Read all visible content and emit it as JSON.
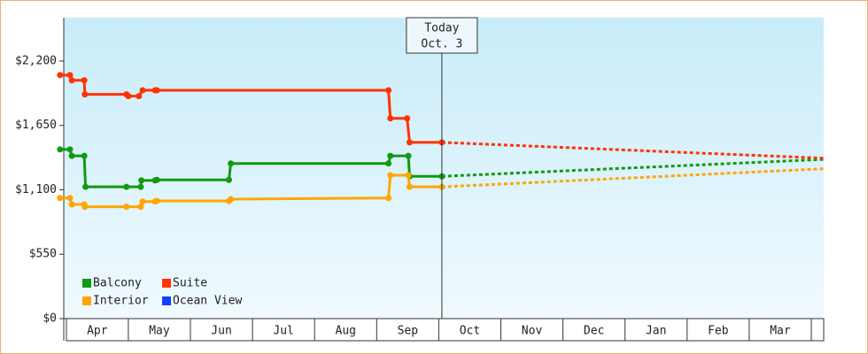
{
  "chart_data": {
    "type": "line",
    "ylim": [
      0,
      2570
    ],
    "yticks": [
      {
        "value": 0,
        "label": "$0"
      },
      {
        "value": 550,
        "label": "$550"
      },
      {
        "value": 1100,
        "label": "$1,100"
      },
      {
        "value": 1650,
        "label": "$1,650"
      },
      {
        "value": 2200,
        "label": "$2,200"
      }
    ],
    "xlim": [
      -0.04,
      12.2
    ],
    "xticks": [
      {
        "value": 0.5,
        "label": "Apr"
      },
      {
        "value": 1.5,
        "label": "May"
      },
      {
        "value": 2.5,
        "label": "Jun"
      },
      {
        "value": 3.5,
        "label": "Jul"
      },
      {
        "value": 4.5,
        "label": "Aug"
      },
      {
        "value": 5.5,
        "label": "Sep"
      },
      {
        "value": 6.5,
        "label": "Oct"
      },
      {
        "value": 7.5,
        "label": "Nov"
      },
      {
        "value": 8.5,
        "label": "Dec"
      },
      {
        "value": 9.5,
        "label": "Jan"
      },
      {
        "value": 10.5,
        "label": "Feb"
      },
      {
        "value": 11.5,
        "label": "Mar"
      }
    ],
    "annotation": {
      "x": 6.05,
      "lines": [
        "Today",
        "Oct. 3"
      ]
    },
    "series": [
      {
        "name": "Balcony",
        "color": "#119911",
        "x": [
          -0.1,
          0.06,
          0.09,
          0.29,
          0.31,
          0.97,
          1.2,
          1.21,
          1.43,
          1.46,
          2.62,
          2.65,
          5.19,
          5.22,
          5.51,
          5.53,
          6.05
        ],
        "values": [
          1445,
          1445,
          1390,
          1390,
          1125,
          1125,
          1125,
          1180,
          1180,
          1185,
          1185,
          1325,
          1325,
          1390,
          1390,
          1215,
          1215
        ],
        "forecast": {
          "x": [
            6.05,
            12.2
          ],
          "values": [
            1215,
            1360
          ]
        }
      },
      {
        "name": "Suite",
        "color": "#ff3300",
        "x": [
          -0.1,
          0.06,
          0.09,
          0.29,
          0.3,
          0.97,
          1.0,
          1.17,
          1.23,
          1.43,
          1.46,
          5.19,
          5.22,
          5.49,
          5.53,
          6.05
        ],
        "values": [
          2080,
          2080,
          2035,
          2035,
          1915,
          1915,
          1900,
          1900,
          1950,
          1950,
          1950,
          1950,
          1710,
          1710,
          1505,
          1505
        ],
        "forecast": {
          "x": [
            6.05,
            12.2
          ],
          "values": [
            1505,
            1370
          ]
        }
      },
      {
        "name": "Interior",
        "color": "#ffa500",
        "x": [
          -0.1,
          0.06,
          0.09,
          0.29,
          0.3,
          0.97,
          1.2,
          1.23,
          1.43,
          1.46,
          2.62,
          2.65,
          5.19,
          5.22,
          5.51,
          5.53,
          6.05
        ],
        "values": [
          1030,
          1030,
          975,
          975,
          955,
          955,
          955,
          1000,
          1000,
          1005,
          1005,
          1020,
          1030,
          1225,
          1225,
          1125,
          1125
        ],
        "forecast": {
          "x": [
            6.05,
            12.2
          ],
          "values": [
            1125,
            1280
          ]
        }
      },
      {
        "name": "Ocean View",
        "color": "#1040ff",
        "x": [],
        "values": []
      }
    ]
  }
}
